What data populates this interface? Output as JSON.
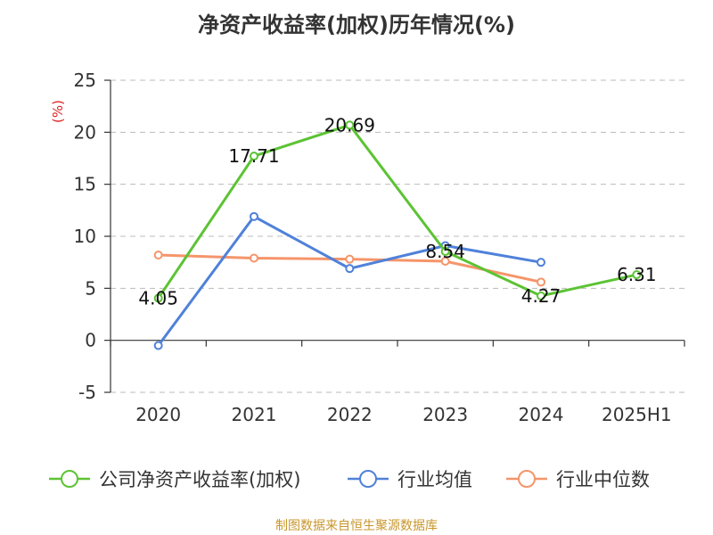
{
  "chart_data": {
    "type": "line",
    "title": "净资产收益率(加权)历年情况(%)",
    "ylabel": "(%)",
    "categories": [
      "2020",
      "2021",
      "2022",
      "2023",
      "2024",
      "2025H1"
    ],
    "ylim": [
      -5,
      25
    ],
    "yticks": [
      25,
      20,
      15,
      10,
      5,
      0,
      -5
    ],
    "grid": true,
    "legend_position": "bottom",
    "series": [
      {
        "name": "公司净资产收益率(加权)",
        "color": "#5cc334",
        "values": [
          4.05,
          17.71,
          20.69,
          8.54,
          4.27,
          6.31
        ],
        "labels": [
          "4.05",
          "17.71",
          "20.69",
          "8.54",
          "4.27",
          "6.31"
        ]
      },
      {
        "name": "行业均值",
        "color": "#4f81d9",
        "values": [
          -0.5,
          11.9,
          6.9,
          9.1,
          7.5,
          null
        ]
      },
      {
        "name": "行业中位数",
        "color": "#f5956a",
        "values": [
          8.2,
          7.9,
          7.8,
          7.6,
          5.6,
          null
        ]
      }
    ]
  },
  "footer": {
    "source": "制图数据来自恒生聚源数据库"
  }
}
